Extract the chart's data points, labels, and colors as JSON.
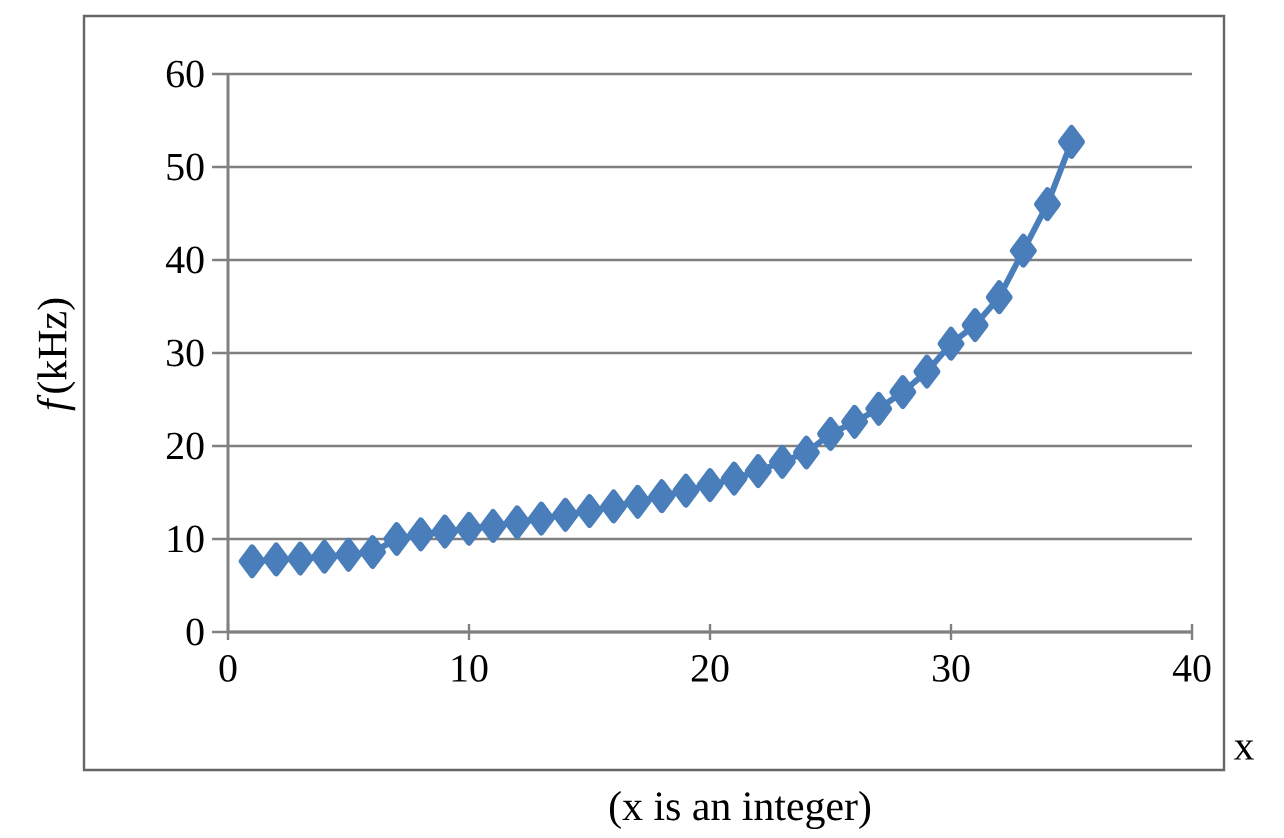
{
  "chart_data": {
    "type": "line",
    "xlabel": "x",
    "ylabel": "*f*(kHz)",
    "annotations": [
      "(x is an integer)"
    ],
    "x": [
      1,
      2,
      3,
      4,
      5,
      6,
      7,
      8,
      9,
      10,
      11,
      12,
      13,
      14,
      15,
      16,
      17,
      18,
      19,
      20,
      21,
      22,
      23,
      24,
      25,
      26,
      27,
      28,
      29,
      30,
      31,
      32,
      33,
      34,
      35
    ],
    "series": [
      {
        "color": "#4a7ebb",
        "values": [
          7.6,
          7.8,
          7.9,
          8.1,
          8.3,
          8.6,
          10.0,
          10.5,
          10.8,
          11.1,
          11.4,
          11.8,
          12.2,
          12.6,
          13.0,
          13.5,
          14.0,
          14.6,
          15.2,
          15.8,
          16.5,
          17.3,
          18.3,
          19.3,
          21.3,
          22.6,
          24.0,
          25.8,
          28.0,
          31.0,
          33.0,
          36.0,
          41.0,
          46.0,
          52.7
        ]
      }
    ],
    "xlim": [
      0,
      40
    ],
    "ylim": [
      0,
      60
    ],
    "xticks": [
      0,
      10,
      20,
      30,
      40
    ],
    "yticks": [
      0,
      10,
      20,
      30,
      40,
      50,
      60
    ],
    "grid": "y",
    "marker": "diamond",
    "line_style": "solid"
  }
}
